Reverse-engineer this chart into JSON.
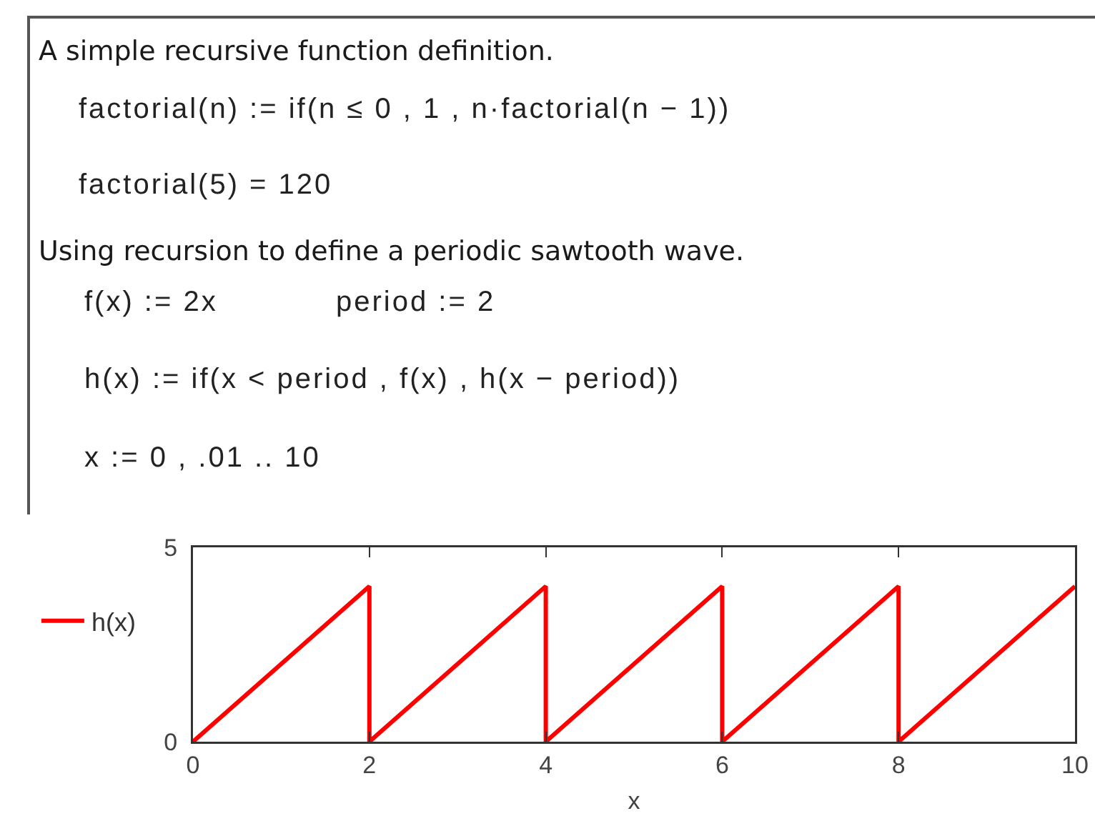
{
  "chart_data": {
    "type": "line",
    "annotations": [
      "A simple recursive function definition.",
      "factorial(n) := if(n ≤ 0 , 1 , n·factorial(n − 1))",
      "factorial(5) = 120",
      "Using recursion to define a periodic sawtooth wave.",
      "f(x) := 2x",
      "period := 2",
      "h(x) := if(x < period , f(x) , h(x − period))",
      "x := 0 , .01 .. 10"
    ],
    "xlabel": "x",
    "x": [
      0,
      2,
      2,
      4,
      4,
      6,
      6,
      8,
      8,
      10
    ],
    "series": [
      {
        "name": "h(x)",
        "color": "#ff0000",
        "values": [
          0,
          4,
          0,
          4,
          0,
          4,
          0,
          4,
          0,
          4
        ]
      }
    ],
    "xlim": [
      0,
      10
    ],
    "xticks": [
      0,
      2,
      4,
      6,
      8,
      10
    ],
    "ylim": [
      0,
      5
    ],
    "yticks": [
      0,
      5
    ],
    "legend": "left"
  }
}
